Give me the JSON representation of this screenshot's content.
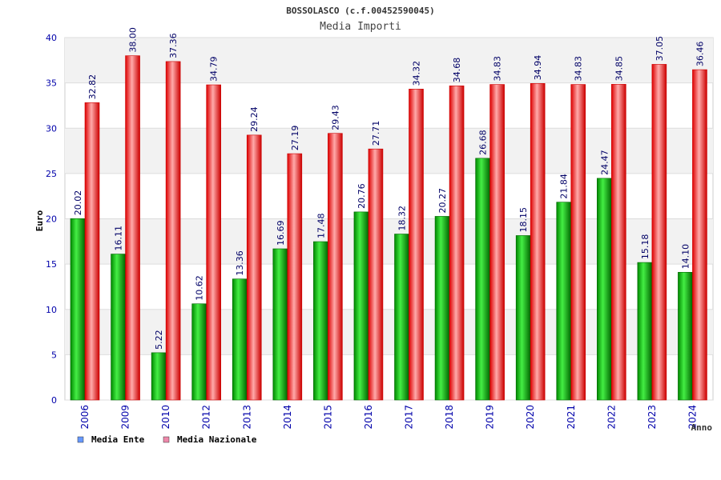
{
  "chart_data": {
    "type": "bar",
    "title": "BOSSOLASCO (c.f.00452590045)",
    "subtitle": "Media Importi",
    "xlabel": "Anno",
    "ylabel": "Euro",
    "ylim": [
      0,
      40
    ],
    "yticks": [
      0,
      5,
      10,
      15,
      20,
      25,
      30,
      35,
      40
    ],
    "grid": true,
    "legend_position": "bottom-left",
    "categories": [
      "2006",
      "2009",
      "2010",
      "2012",
      "2013",
      "2014",
      "2015",
      "2016",
      "2017",
      "2018",
      "2019",
      "2020",
      "2021",
      "2022",
      "2023",
      "2024"
    ],
    "series": [
      {
        "name": "Media Ente",
        "values": [
          20.02,
          16.11,
          5.22,
          10.62,
          13.36,
          16.69,
          17.48,
          20.76,
          18.32,
          20.27,
          26.68,
          18.15,
          21.84,
          24.47,
          15.18,
          14.1
        ],
        "labels": [
          "20.02",
          "16.11",
          "5.22",
          "10.62",
          "13.36",
          "16.69",
          "17.48",
          "20.76",
          "18.32",
          "20.27",
          "26.68",
          "18.15",
          "21.84",
          "24.47",
          "15.18",
          "14.10"
        ]
      },
      {
        "name": "Media Nazionale",
        "values": [
          32.82,
          38.0,
          37.36,
          34.79,
          29.24,
          27.19,
          29.43,
          27.71,
          34.32,
          34.68,
          34.83,
          34.94,
          34.83,
          34.85,
          37.05,
          36.46
        ],
        "labels": [
          "32.82",
          "38.00",
          "37.36",
          "34.79",
          "29.24",
          "27.19",
          "29.43",
          "27.71",
          "34.32",
          "34.68",
          "34.83",
          "34.94",
          "34.83",
          "34.85",
          "37.05",
          "36.46"
        ]
      }
    ]
  },
  "colors": {
    "ente_dark": "#006600",
    "ente_light": "#33ee33",
    "nazionale_dark": "#cc0000",
    "nazionale_light": "#ff9999",
    "legend_ente": "#6699ff",
    "legend_nazionale": "#ee88aa",
    "tick_text": "#0000aa",
    "label_text": "#000066",
    "band": "#f2f2f2",
    "grid": "#dddddd"
  }
}
